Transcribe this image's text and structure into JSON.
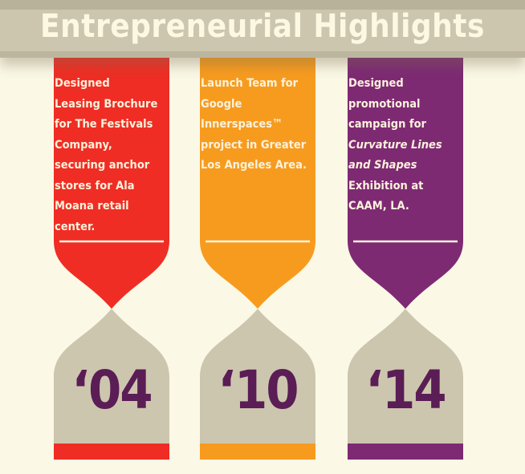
{
  "banner": {
    "title": "Entrepreneurial Highlights"
  },
  "colors": {
    "background": "#fbf8e6",
    "banner": "#cdc6ae",
    "sand": "#cdc6ae",
    "year_text": "#5a1d55",
    "red": "#ef2d24",
    "orange": "#f79b1f",
    "purple": "#7d2a73"
  },
  "highlights": [
    {
      "year": "‘04",
      "color": "#ef2d24",
      "lines": [
        "Designed",
        "Leasing Brochure",
        "for The Festivals",
        "Company,",
        "securing anchor",
        "stores for Ala",
        "Moana retail",
        "center."
      ]
    },
    {
      "year": "‘10",
      "color": "#f79b1f",
      "lines": [
        "Launch Team for",
        "Google",
        "Innerspaces™",
        "project in Greater",
        "Los Angeles Area."
      ]
    },
    {
      "year": "‘14",
      "color": "#7d2a73",
      "lines": [
        "Designed",
        "promotional",
        "campaign for",
        "Curvature Lines",
        "and Shapes",
        "Exhibition at",
        "CAAM, LA."
      ]
    }
  ]
}
